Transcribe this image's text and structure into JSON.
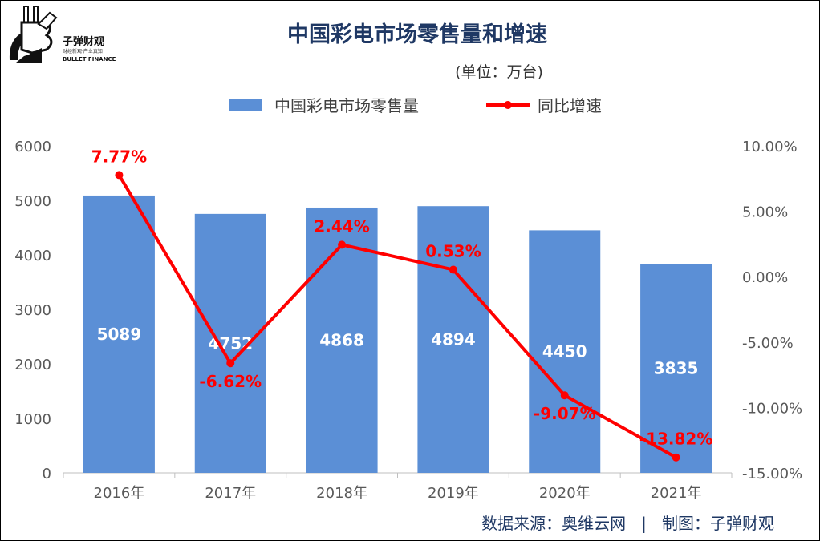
{
  "logo": {
    "name": "子弹财观",
    "tagline": "财经新观·产业真知",
    "english": "BULLET FINANCE"
  },
  "source_text": "数据来源：奥维云网   |   制图：子弹财观",
  "chart_data": {
    "type": "bar+line",
    "title": "中国彩电市场零售量和增速",
    "subtitle": "(单位：万台)",
    "categories": [
      "2016年",
      "2017年",
      "2018年",
      "2019年",
      "2020年",
      "2021年"
    ],
    "series": [
      {
        "name": "中国彩电市场零售量",
        "type": "bar",
        "axis": "left",
        "color": "#5b8fd6",
        "values": [
          5089,
          4752,
          4868,
          4894,
          4450,
          3835
        ],
        "labels": [
          "5089",
          "4752",
          "4868",
          "4894",
          "4450",
          "3835"
        ]
      },
      {
        "name": "同比增速",
        "type": "line",
        "axis": "right",
        "color": "#ff0000",
        "values": [
          7.77,
          -6.62,
          2.44,
          0.53,
          -9.07,
          -13.82
        ],
        "labels": [
          "7.77%",
          "-6.62%",
          "2.44%",
          "0.53%",
          "-9.07%",
          "-13.82%"
        ]
      }
    ],
    "y_left": {
      "range": [
        0,
        6000
      ],
      "ticks": [
        "0",
        "1000",
        "2000",
        "3000",
        "4000",
        "5000",
        "6000"
      ]
    },
    "y_right": {
      "range": [
        -15,
        10
      ],
      "ticks": [
        "-15.00%",
        "-10.00%",
        "-5.00%",
        "0.00%",
        "5.00%",
        "10.00%"
      ]
    },
    "grid": false,
    "legend_position": "top"
  }
}
